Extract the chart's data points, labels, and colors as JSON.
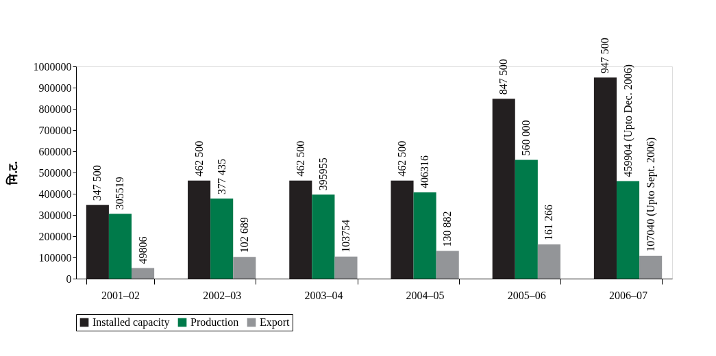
{
  "chart_data": {
    "type": "bar",
    "ylabel": "मि.ट.",
    "categories": [
      "2001–02",
      "2002–03",
      "2003–04",
      "2004–05",
      "2005–06",
      "2006–07"
    ],
    "series": [
      {
        "name": "Installed capacity",
        "color": "#231f20",
        "values": [
          347500,
          462500,
          462500,
          462500,
          847500,
          947500
        ],
        "value_labels": [
          "347 500",
          "462 500",
          "462 500",
          "462 500",
          "847 500",
          "947 500"
        ]
      },
      {
        "name": "Production",
        "color": "#007a4a",
        "values": [
          305519,
          377435,
          395955,
          406316,
          560000,
          459904
        ],
        "value_labels": [
          "305519",
          "377 435",
          "395955",
          "406316",
          "560 000",
          "459904  (Upto Dec. 2006)"
        ]
      },
      {
        "name": "Export",
        "color": "#939598",
        "values": [
          49806,
          102689,
          103754,
          130882,
          161266,
          107040
        ],
        "value_labels": [
          "49806",
          "102 689",
          "103754",
          "130 882",
          "161 266",
          "107040  (Upto Sept. 2006)"
        ]
      }
    ],
    "ylim": [
      0,
      1000000
    ],
    "yticks": [
      0,
      100000,
      200000,
      300000,
      400000,
      500000,
      600000,
      700000,
      800000,
      900000,
      1000000
    ],
    "grid": false,
    "legend": "bottom"
  }
}
